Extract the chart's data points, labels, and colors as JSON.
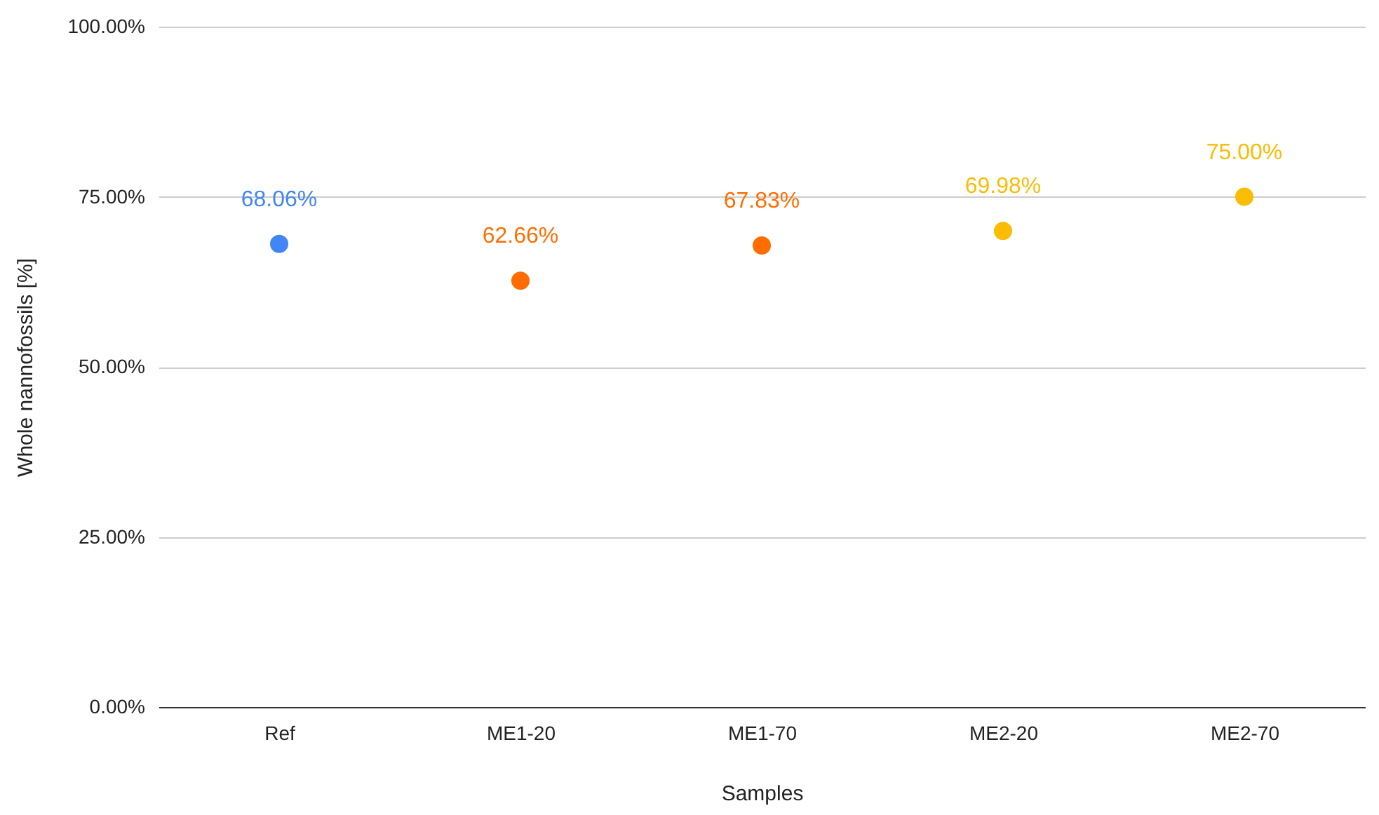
{
  "chart_data": {
    "type": "scatter",
    "xlabel": "Samples",
    "ylabel": "Whole nannofossils  [%]",
    "categories": [
      "Ref",
      "ME1-20",
      "ME1-70",
      "ME2-20",
      "ME2-70"
    ],
    "values": [
      68.06,
      62.66,
      67.83,
      69.98,
      75.0
    ],
    "colors": [
      "#4285f4",
      "#ff6d01",
      "#ff6d01",
      "#fbbc04",
      "#fbbc04"
    ],
    "value_labels": [
      "68.06%",
      "62.66%",
      "67.83%",
      "69.98%",
      "75.00%"
    ],
    "ylim": [
      0,
      100
    ],
    "yticks": [
      {
        "value": 0,
        "label": "0.00%"
      },
      {
        "value": 25,
        "label": "25.00%"
      },
      {
        "value": 50,
        "label": "50.00%"
      },
      {
        "value": 75,
        "label": "75.00%"
      },
      {
        "value": 100,
        "label": "100.00%"
      }
    ],
    "grid": "y",
    "marker": "circle"
  }
}
